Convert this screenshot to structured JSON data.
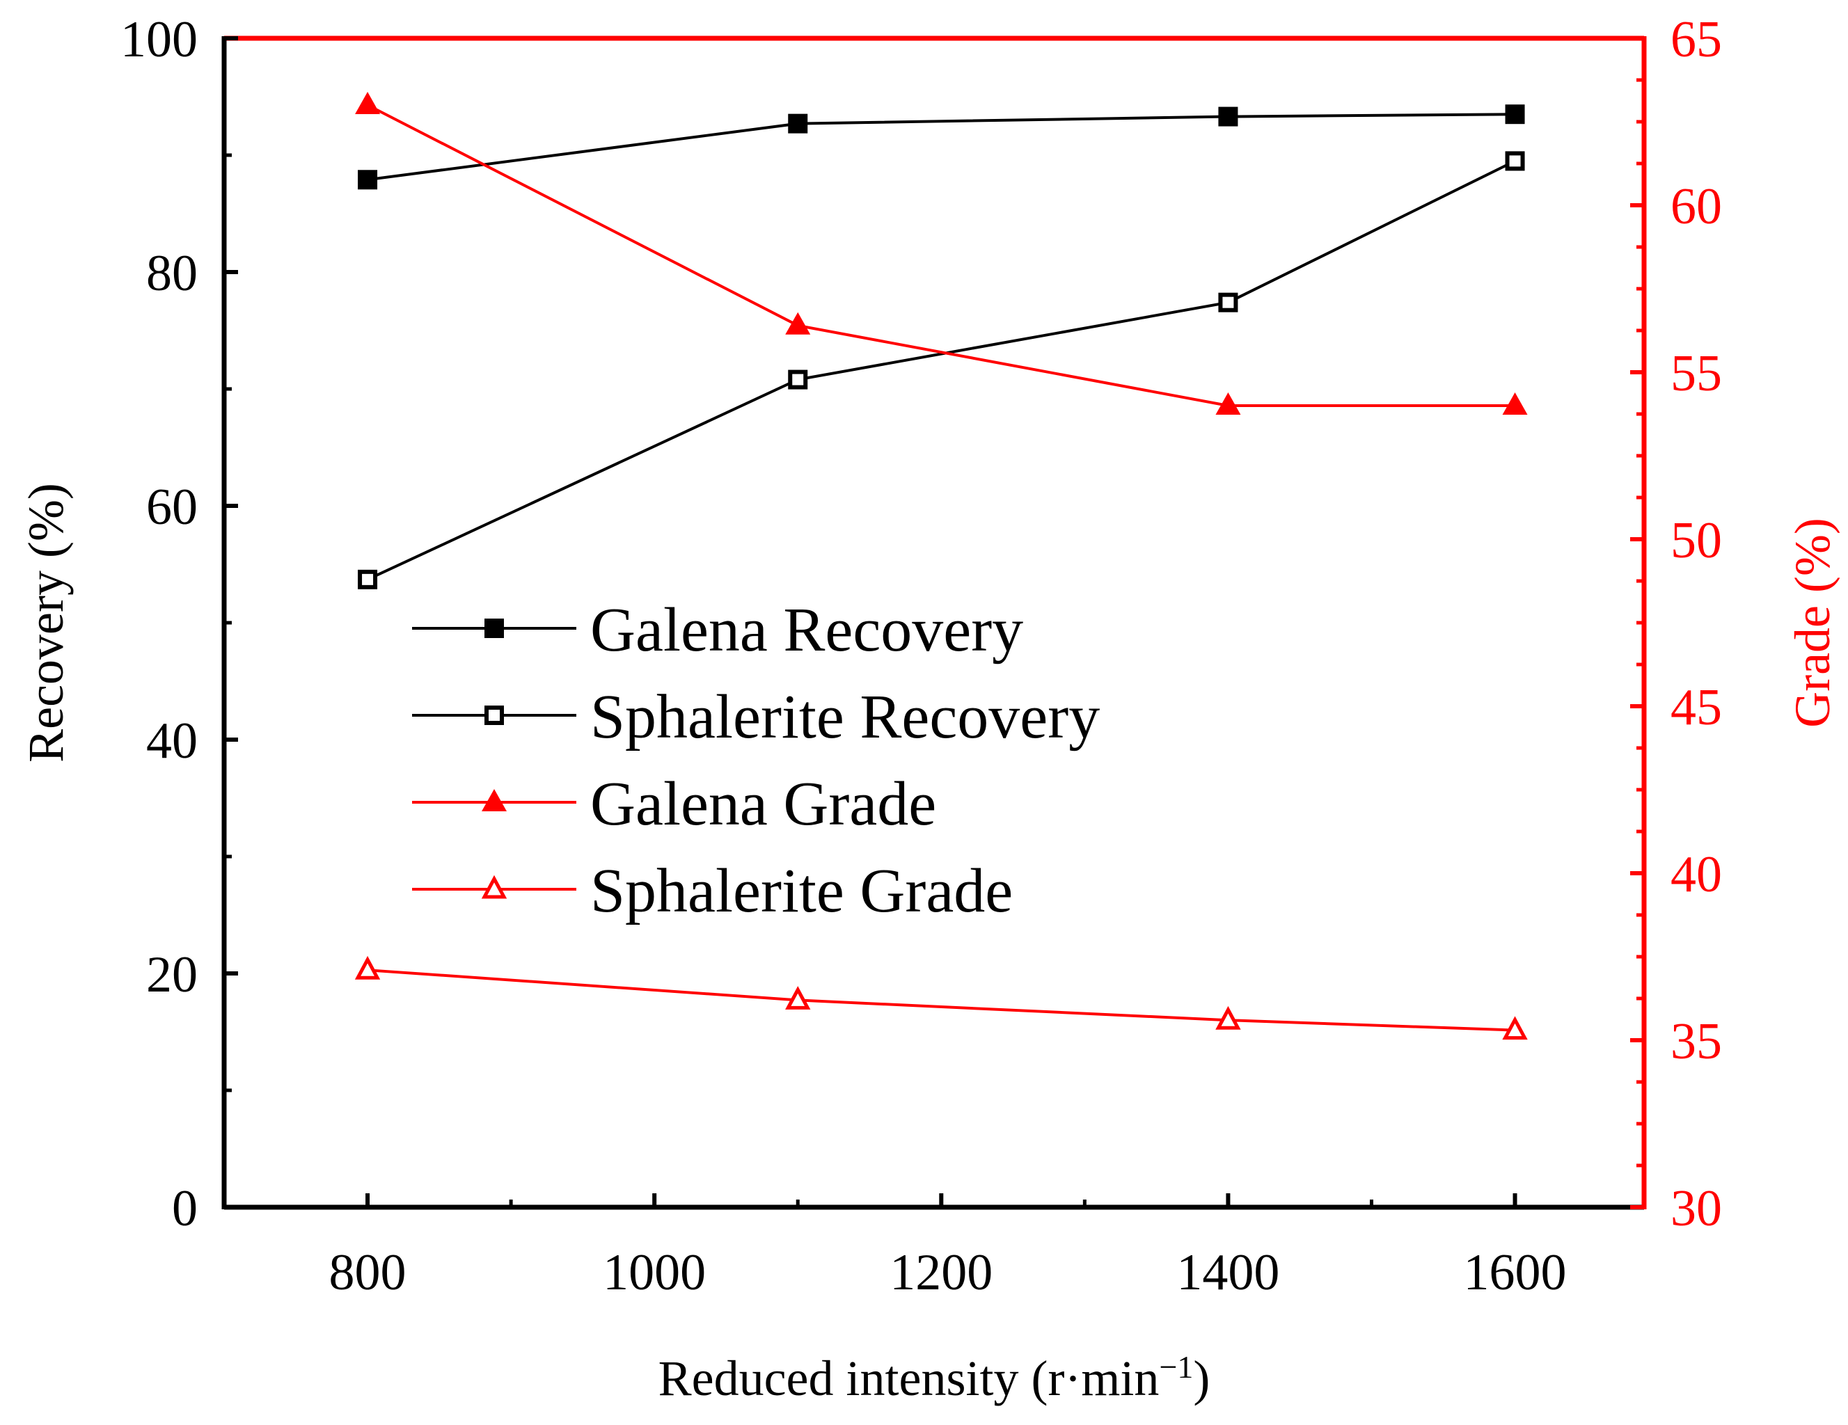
{
  "colors": {
    "left_axis": "#000000",
    "right_axis": "#ff0000",
    "background": "#ffffff"
  },
  "chart_data": {
    "type": "line",
    "title": "",
    "xlabel": "Reduced intensity (r·min",
    "xlabel_superscript": "−1",
    "xlabel_suffix": ")",
    "ylabel": "Recovery (%)",
    "y2label": "Grade (%)",
    "xlim": [
      700,
      1690
    ],
    "ylim": [
      0,
      100
    ],
    "y2lim": [
      30,
      65
    ],
    "x_ticks": [
      800,
      1000,
      1200,
      1400,
      1600
    ],
    "x_tick_labels": [
      "800",
      "1000",
      "1200",
      "1400",
      "1600"
    ],
    "x_minor_ticks": [
      900,
      1100,
      1300,
      1500
    ],
    "y_ticks": [
      0,
      20,
      40,
      60,
      80,
      100
    ],
    "y_tick_labels": [
      "0",
      "20",
      "40",
      "60",
      "80",
      "100"
    ],
    "y_minor_ticks": [
      10,
      30,
      50,
      70,
      90
    ],
    "y2_ticks": [
      30,
      35,
      40,
      45,
      50,
      55,
      60,
      65
    ],
    "y2_tick_labels": [
      "30",
      "35",
      "40",
      "45",
      "50",
      "55",
      "60",
      "65"
    ],
    "y2_minor_ticks": [
      31.25,
      32.5,
      33.75,
      36.25,
      37.5,
      38.75,
      41.25,
      42.5,
      43.75,
      46.25,
      47.5,
      48.75,
      51.25,
      52.5,
      53.75,
      56.25,
      57.5,
      58.75,
      61.25,
      62.5,
      63.75
    ],
    "legend_position": "center-left",
    "x": [
      800,
      1100,
      1400,
      1600
    ],
    "series": [
      {
        "name": "Galena Recovery",
        "axis": "left",
        "color": "#000000",
        "marker": "filled-square",
        "values": [
          87.9,
          92.7,
          93.3,
          93.5
        ]
      },
      {
        "name": "Sphalerite Recovery",
        "axis": "left",
        "color": "#000000",
        "marker": "open-square",
        "values": [
          53.7,
          70.8,
          77.4,
          89.5
        ]
      },
      {
        "name": "Galena Grade",
        "axis": "right",
        "color": "#ff0000",
        "marker": "filled-triangle",
        "values": [
          63.0,
          56.4,
          54.0,
          54.0
        ]
      },
      {
        "name": "Sphalerite Grade",
        "axis": "right",
        "color": "#ff0000",
        "marker": "open-triangle",
        "values": [
          37.1,
          36.2,
          35.6,
          35.3
        ]
      }
    ]
  }
}
